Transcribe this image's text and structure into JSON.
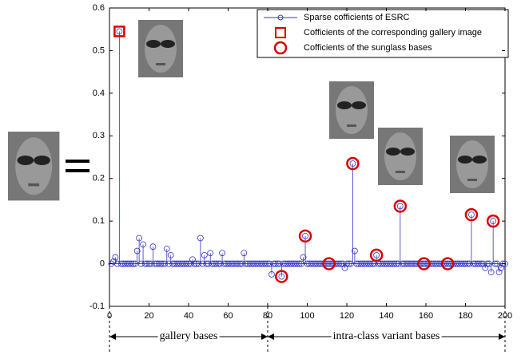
{
  "chart_data": {
    "type": "stem",
    "xlim": [
      0,
      200
    ],
    "ylim": [
      -0.1,
      0.6
    ],
    "xticks": [
      0,
      20,
      40,
      60,
      80,
      100,
      120,
      140,
      160,
      180,
      200
    ],
    "yticks": [
      -0.1,
      0,
      0.1,
      0.2,
      0.3,
      0.4,
      0.5,
      0.6
    ],
    "legend": "upper right",
    "annotations": [
      "gallery bases",
      "intra-class variant bases"
    ],
    "series": [
      {
        "name": "Sparse cofficients of ESRC",
        "color": "#3333cc",
        "marker": "circle",
        "x": [
          1,
          2,
          3,
          4,
          5,
          6,
          7,
          8,
          9,
          10,
          11,
          12,
          13,
          14,
          15,
          16,
          17,
          18,
          19,
          20,
          21,
          22,
          23,
          24,
          25,
          26,
          27,
          28,
          29,
          30,
          31,
          32,
          33,
          34,
          35,
          36,
          37,
          38,
          39,
          40,
          41,
          42,
          43,
          44,
          45,
          46,
          47,
          48,
          49,
          50,
          51,
          52,
          53,
          54,
          55,
          56,
          57,
          58,
          59,
          60,
          61,
          62,
          63,
          64,
          65,
          66,
          67,
          68,
          69,
          70,
          71,
          72,
          73,
          74,
          75,
          76,
          77,
          78,
          79,
          80,
          81,
          82,
          83,
          84,
          85,
          86,
          87,
          88,
          89,
          90,
          91,
          92,
          93,
          94,
          95,
          96,
          97,
          98,
          99,
          100,
          101,
          102,
          103,
          104,
          105,
          106,
          107,
          108,
          109,
          110,
          111,
          112,
          113,
          114,
          115,
          116,
          117,
          118,
          119,
          120,
          121,
          122,
          123,
          124,
          125,
          126,
          127,
          128,
          129,
          130,
          131,
          132,
          133,
          134,
          135,
          136,
          137,
          138,
          139,
          140,
          141,
          142,
          143,
          144,
          145,
          146,
          147,
          148,
          149,
          150,
          151,
          152,
          153,
          154,
          155,
          156,
          157,
          158,
          159,
          160,
          161,
          162,
          163,
          164,
          165,
          166,
          167,
          168,
          169,
          170,
          171,
          172,
          173,
          174,
          175,
          176,
          177,
          178,
          179,
          180,
          181,
          182,
          183,
          184,
          185,
          186,
          187,
          188,
          189,
          190,
          191,
          192,
          193,
          194,
          195,
          196,
          197,
          198,
          199,
          200
        ],
        "values": [
          0,
          0.005,
          0.015,
          0,
          0.545,
          0,
          0,
          0,
          0,
          0,
          0,
          0,
          0,
          0.03,
          0.06,
          0,
          0.045,
          0,
          0,
          0,
          0,
          0.04,
          0,
          0,
          0,
          0,
          0,
          0,
          0.035,
          0,
          0.02,
          0,
          0,
          0,
          0,
          0,
          0,
          0,
          0,
          0,
          0,
          0.01,
          0,
          0,
          0,
          0.06,
          0,
          0.02,
          0,
          0,
          0.025,
          0,
          0,
          0,
          0,
          0,
          0.025,
          0,
          0,
          0,
          0,
          0,
          0,
          0,
          0,
          0,
          0,
          0.025,
          0,
          0,
          0,
          0,
          0,
          0,
          0,
          0,
          0,
          0,
          0,
          0,
          0,
          -0.025,
          0,
          0,
          0,
          0,
          -0.03,
          0,
          0,
          0,
          0,
          0,
          0,
          0,
          0,
          0,
          0,
          0.015,
          0.065,
          0,
          0,
          0,
          0,
          0,
          0,
          0,
          0,
          0,
          0,
          0,
          0,
          0,
          0,
          0,
          0,
          0,
          0,
          0,
          -0.01,
          0,
          0,
          0,
          0.235,
          0.03,
          0,
          0,
          0,
          0,
          0,
          0,
          0,
          0,
          0,
          0,
          0.02,
          0,
          0,
          0,
          0,
          0,
          0,
          0,
          0,
          0,
          0,
          0,
          0.135,
          0,
          0,
          0,
          0,
          0,
          0,
          0,
          0,
          0,
          0,
          0,
          0,
          0,
          0,
          0,
          0,
          0,
          0,
          0,
          0,
          0,
          0,
          0,
          0,
          0,
          0,
          0,
          0,
          0,
          0,
          0,
          0,
          0,
          0,
          0,
          0.115,
          0,
          0,
          0,
          0,
          0,
          0,
          -0.01,
          0,
          0,
          -0.02,
          0.1,
          0,
          0,
          -0.02,
          -0.01,
          0,
          0
        ]
      },
      {
        "name": "Cofficients of the corresponding gallery image",
        "color": "#dd0000",
        "marker": "square",
        "x": [
          5
        ],
        "values": [
          0.545
        ]
      },
      {
        "name": "Cofficients of the sunglass bases",
        "color": "#dd0000",
        "marker": "circle",
        "x": [
          87,
          99,
          111,
          123,
          135,
          147,
          159,
          171,
          183,
          194
        ],
        "values": [
          -0.03,
          0.065,
          0,
          0.235,
          0.02,
          0.135,
          0,
          0,
          0.115,
          0.1
        ]
      }
    ]
  }
}
